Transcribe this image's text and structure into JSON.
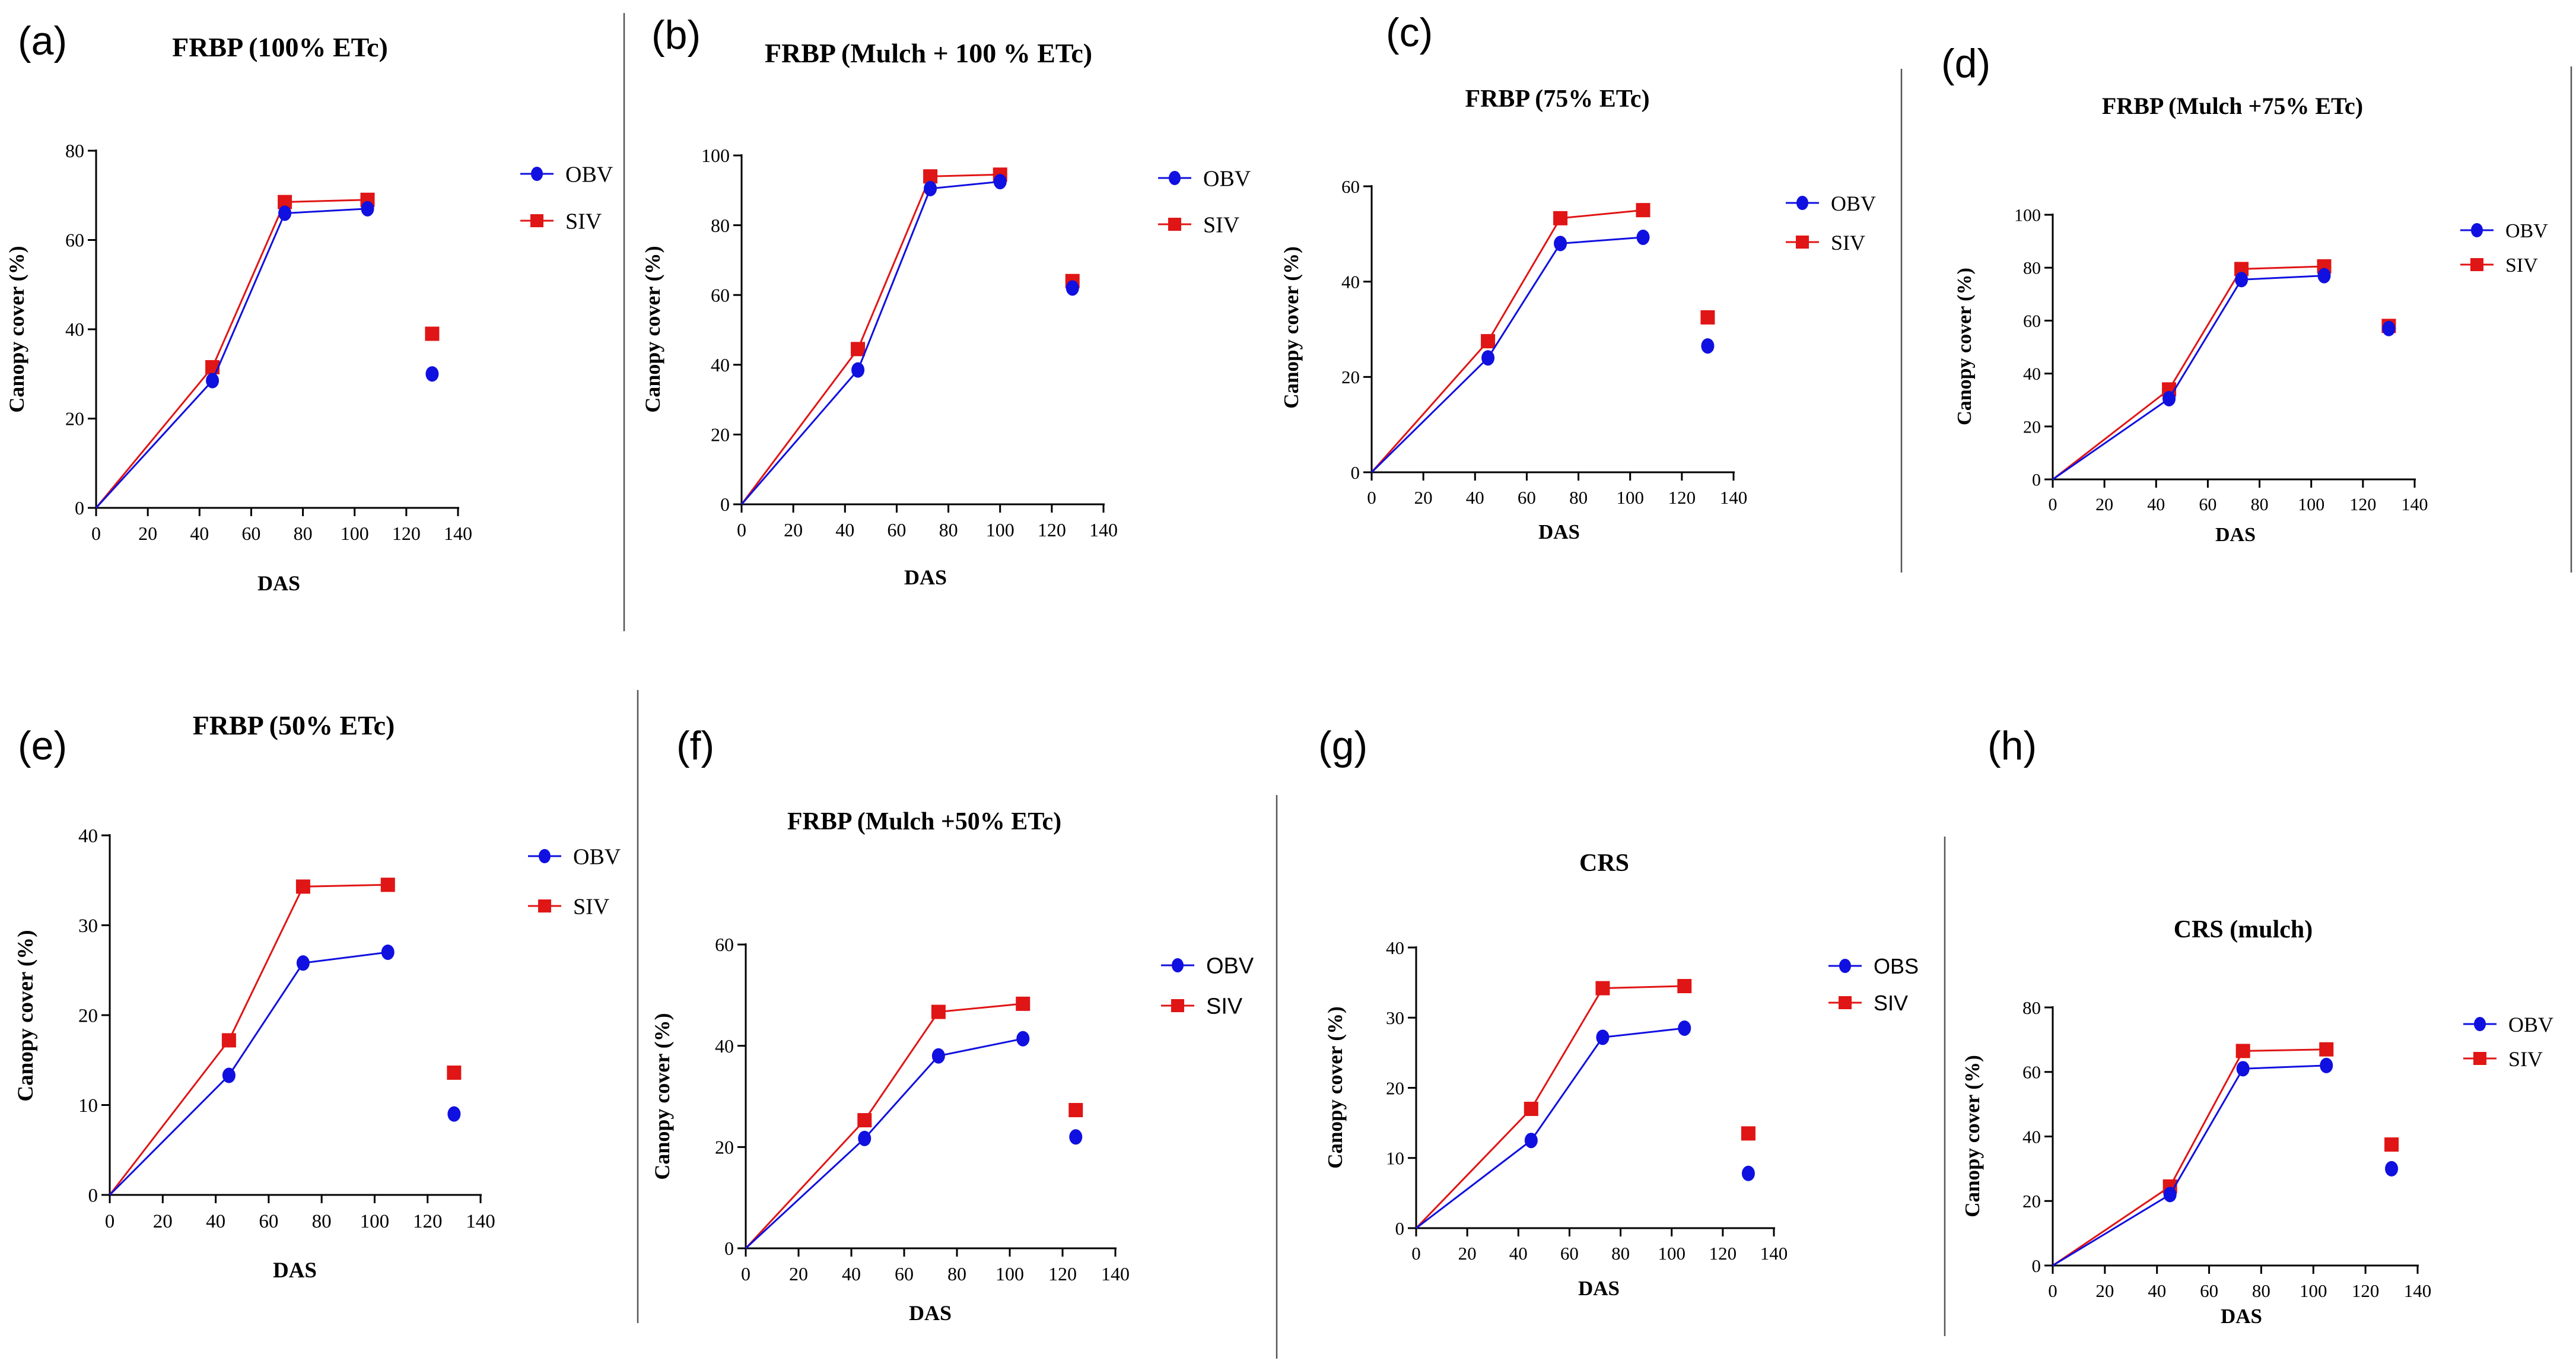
{
  "colors": {
    "obv": "#1010e0",
    "siv": "#e01515",
    "axis": "#000000",
    "divider": "#555555"
  },
  "chart_data": [
    {
      "id": "a",
      "type": "line",
      "letter": "(a)",
      "title": "FRBP (100% ETc)",
      "xlabel": "DAS",
      "ylabel": "Canopy cover (%)",
      "xlim": [
        0,
        140
      ],
      "ylim": [
        0,
        80
      ],
      "xticks": [
        0,
        20,
        40,
        60,
        80,
        100,
        120,
        140
      ],
      "yticks": [
        0,
        20,
        40,
        60,
        80
      ],
      "series": [
        {
          "name": "OBV",
          "marker": "circle",
          "x": [
            0,
            45,
            73,
            105,
            130
          ],
          "y": [
            0,
            28.5,
            66,
            67,
            30
          ]
        },
        {
          "name": "SIV",
          "marker": "square",
          "x": [
            0,
            45,
            73,
            105,
            130
          ],
          "y": [
            0,
            31.5,
            68.5,
            69,
            39
          ]
        }
      ]
    },
    {
      "id": "b",
      "type": "line",
      "letter": "(b)",
      "title": "FRBP  (Mulch + 100 % ETc)",
      "xlabel": "DAS",
      "ylabel": "Canopy cover (%)",
      "xlim": [
        0,
        140
      ],
      "ylim": [
        0,
        100
      ],
      "xticks": [
        0,
        20,
        40,
        60,
        80,
        100,
        120,
        140
      ],
      "yticks": [
        0,
        20,
        40,
        60,
        80,
        100
      ],
      "series": [
        {
          "name": "OBV",
          "marker": "circle",
          "x": [
            0,
            45,
            73,
            100,
            128
          ],
          "y": [
            0,
            38.5,
            90.5,
            92.5,
            62
          ]
        },
        {
          "name": "SIV",
          "marker": "square",
          "x": [
            0,
            45,
            73,
            100,
            128
          ],
          "y": [
            0,
            44.5,
            94,
            94.5,
            64
          ]
        }
      ]
    },
    {
      "id": "c",
      "type": "line",
      "letter": "(c)",
      "title": "FRBP (75% ETc)",
      "xlabel": "DAS",
      "ylabel": "Canopy cover (%)",
      "xlim": [
        0,
        140
      ],
      "ylim": [
        0,
        60
      ],
      "xticks": [
        0,
        20,
        40,
        60,
        80,
        100,
        120,
        140
      ],
      "yticks": [
        0,
        20,
        40,
        60
      ],
      "series": [
        {
          "name": "OBV",
          "marker": "circle",
          "x": [
            0,
            45,
            73,
            105,
            130
          ],
          "y": [
            0,
            24,
            48,
            49.3,
            26.5
          ]
        },
        {
          "name": "SIV",
          "marker": "square",
          "x": [
            0,
            45,
            73,
            105,
            130
          ],
          "y": [
            0,
            27.5,
            53.3,
            55,
            32.5
          ]
        }
      ]
    },
    {
      "id": "d",
      "type": "line",
      "letter": "(d)",
      "title": "FRBP (Mulch +75% ETc)",
      "xlabel": "DAS",
      "ylabel": "Canopy cover (%)",
      "xlim": [
        0,
        140
      ],
      "ylim": [
        0,
        100
      ],
      "xticks": [
        0,
        20,
        40,
        60,
        80,
        100,
        120,
        140
      ],
      "yticks": [
        0,
        20,
        40,
        60,
        80,
        100
      ],
      "series": [
        {
          "name": "OBV",
          "marker": "circle",
          "x": [
            0,
            45,
            73,
            105,
            130
          ],
          "y": [
            0,
            30.5,
            75.5,
            77,
            57
          ]
        },
        {
          "name": "SIV",
          "marker": "square",
          "x": [
            0,
            45,
            73,
            105,
            130
          ],
          "y": [
            0,
            34,
            79.5,
            80.5,
            58
          ]
        }
      ]
    },
    {
      "id": "e",
      "type": "line",
      "letter": "(e)",
      "title": "FRBP (50% ETc)",
      "xlabel": "DAS",
      "ylabel": "Canopy cover (%)",
      "xlim": [
        0,
        140
      ],
      "ylim": [
        0,
        40
      ],
      "xticks": [
        0,
        20,
        40,
        60,
        80,
        100,
        120,
        140
      ],
      "yticks": [
        0,
        10,
        20,
        30,
        40
      ],
      "series": [
        {
          "name": "OBV",
          "marker": "circle",
          "x": [
            0,
            45,
            73,
            105,
            130
          ],
          "y": [
            0,
            13.3,
            25.8,
            27,
            9
          ]
        },
        {
          "name": "SIV",
          "marker": "square",
          "x": [
            0,
            45,
            73,
            105,
            130
          ],
          "y": [
            0,
            17.2,
            34.3,
            34.5,
            13.6
          ]
        }
      ]
    },
    {
      "id": "f",
      "type": "line",
      "letter": "(f)",
      "title": "FRBP (Mulch +50% ETc)",
      "xlabel": "DAS",
      "ylabel": "Canopy cover (%)",
      "xlim": [
        0,
        140
      ],
      "ylim": [
        0,
        60
      ],
      "xticks": [
        0,
        20,
        40,
        60,
        80,
        100,
        120,
        140
      ],
      "yticks": [
        0,
        20,
        40,
        60
      ],
      "series": [
        {
          "name": "OBV",
          "marker": "circle",
          "x": [
            0,
            45,
            73,
            105,
            125
          ],
          "y": [
            0,
            21.7,
            38,
            41.4,
            22
          ]
        },
        {
          "name": "SIV",
          "marker": "square",
          "x": [
            0,
            45,
            73,
            105,
            125
          ],
          "y": [
            0,
            25.3,
            46.7,
            48.3,
            27.3
          ]
        }
      ]
    },
    {
      "id": "g",
      "type": "line",
      "letter": "(g)",
      "title": "CRS",
      "xlabel": "DAS",
      "ylabel": "Canopy cover (%)",
      "xlim": [
        0,
        140
      ],
      "ylim": [
        0,
        40
      ],
      "xticks": [
        0,
        20,
        40,
        60,
        80,
        100,
        120,
        140
      ],
      "yticks": [
        0,
        10,
        20,
        30,
        40
      ],
      "series": [
        {
          "name": "OBS",
          "marker": "circle",
          "x": [
            0,
            45,
            73,
            105,
            130
          ],
          "y": [
            0,
            12.5,
            27.2,
            28.5,
            7.8
          ]
        },
        {
          "name": "SIV",
          "marker": "square",
          "x": [
            0,
            45,
            73,
            105,
            130
          ],
          "y": [
            0,
            17,
            34.2,
            34.5,
            13.5
          ]
        }
      ]
    },
    {
      "id": "h",
      "type": "line",
      "letter": "(h)",
      "title": "CRS (mulch)",
      "xlabel": "DAS",
      "ylabel": "Canopy cover (%)",
      "xlim": [
        0,
        140
      ],
      "ylim": [
        0,
        80
      ],
      "xticks": [
        0,
        20,
        40,
        60,
        80,
        100,
        120,
        140
      ],
      "yticks": [
        0,
        20,
        40,
        60,
        80
      ],
      "series": [
        {
          "name": "OBV",
          "marker": "circle",
          "x": [
            0,
            45,
            73,
            105,
            130
          ],
          "y": [
            0,
            22,
            61,
            62,
            30
          ]
        },
        {
          "name": "SIV",
          "marker": "square",
          "x": [
            0,
            45,
            73,
            105,
            130
          ],
          "y": [
            0,
            24.5,
            66.5,
            67,
            37.5
          ]
        }
      ]
    }
  ]
}
